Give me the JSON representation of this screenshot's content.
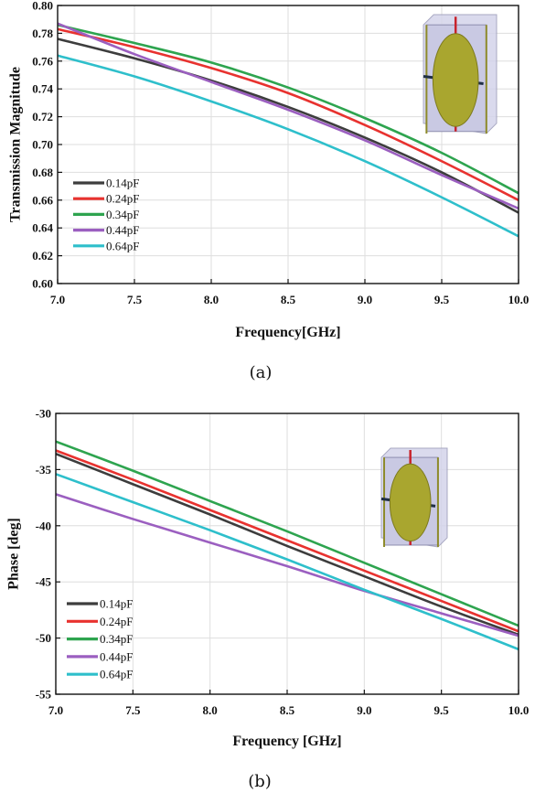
{
  "chart_data": [
    {
      "type": "line",
      "caption": "(a)",
      "xlabel": "Frequency[GHz]",
      "ylabel": "Transmission Magnitude",
      "xlim": [
        7.0,
        10.0
      ],
      "ylim": [
        0.6,
        0.8
      ],
      "xticks": [
        "7.0",
        "7.5",
        "8.0",
        "8.5",
        "9.0",
        "9.5",
        "10.0"
      ],
      "yticks": [
        "0.60",
        "0.62",
        "0.64",
        "0.66",
        "0.68",
        "0.70",
        "0.72",
        "0.74",
        "0.76",
        "0.78",
        "0.80"
      ],
      "grid": true,
      "legend_position": "bottom-left",
      "inset": "unit-cell-with-elliptical-patch",
      "x": [
        7.0,
        7.5,
        8.0,
        8.5,
        9.0,
        9.5,
        10.0
      ],
      "series": [
        {
          "name": "0.14pF",
          "color": "#3d3d3d",
          "values": [
            0.776,
            0.762,
            0.746,
            0.727,
            0.705,
            0.68,
            0.651
          ]
        },
        {
          "name": "0.24pF",
          "color": "#e8322f",
          "values": [
            0.783,
            0.77,
            0.755,
            0.737,
            0.714,
            0.688,
            0.66
          ]
        },
        {
          "name": "0.34pF",
          "color": "#2ea44f",
          "values": [
            0.786,
            0.773,
            0.759,
            0.741,
            0.719,
            0.694,
            0.665
          ]
        },
        {
          "name": "0.44pF",
          "color": "#9b5fc0",
          "values": [
            0.787,
            0.765,
            0.745,
            0.725,
            0.703,
            0.678,
            0.654
          ]
        },
        {
          "name": "0.64pF",
          "color": "#2ebfcb",
          "values": [
            0.764,
            0.749,
            0.731,
            0.711,
            0.688,
            0.662,
            0.634
          ]
        }
      ]
    },
    {
      "type": "line",
      "caption": "(b)",
      "xlabel": "Frequency [GHz]",
      "ylabel": "Phase [deg]",
      "xlim": [
        7.0,
        10.0
      ],
      "ylim": [
        -55,
        -30
      ],
      "xticks": [
        "7.0",
        "7.5",
        "8.0",
        "8.5",
        "9.0",
        "9.5",
        "10.0"
      ],
      "yticks": [
        "-55",
        "-50",
        "-45",
        "-40",
        "-35",
        "-30"
      ],
      "grid": true,
      "legend_position": "bottom-left",
      "inset": "unit-cell-with-elliptical-patch",
      "x": [
        7.0,
        7.5,
        8.0,
        8.5,
        9.0,
        9.5,
        10.0
      ],
      "series": [
        {
          "name": "0.14pF",
          "color": "#3d3d3d",
          "values": [
            -33.6,
            -36.3,
            -39.0,
            -41.8,
            -44.5,
            -47.2,
            -49.7
          ]
        },
        {
          "name": "0.24pF",
          "color": "#e8322f",
          "values": [
            -33.3,
            -35.9,
            -38.6,
            -41.3,
            -44.0,
            -46.7,
            -49.4
          ]
        },
        {
          "name": "0.34pF",
          "color": "#2ea44f",
          "values": [
            -32.5,
            -35.1,
            -37.8,
            -40.5,
            -43.3,
            -46.1,
            -48.9
          ]
        },
        {
          "name": "0.44pF",
          "color": "#9b5fc0",
          "values": [
            -37.2,
            -39.4,
            -41.5,
            -43.6,
            -45.8,
            -47.8,
            -49.8
          ]
        },
        {
          "name": "0.64pF",
          "color": "#2ebfcb",
          "values": [
            -35.4,
            -37.9,
            -40.4,
            -43.0,
            -45.7,
            -48.3,
            -51.0
          ]
        }
      ]
    }
  ]
}
